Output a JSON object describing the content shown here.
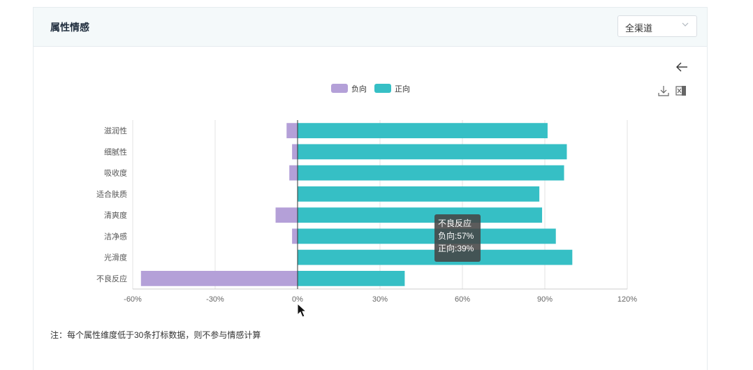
{
  "panel": {
    "title": "属性情感",
    "channel_select": {
      "value": "全渠道"
    },
    "note": "注：每个属性维度低于30条打标数据，则不参与情感计算"
  },
  "toolbar_icons": [
    "back-arrow-icon",
    "download-icon",
    "excel-export-icon"
  ],
  "tooltip": {
    "title": "不良反应",
    "line1": "负向:57%",
    "line2": "正向:39%"
  },
  "chart_data": {
    "type": "bar",
    "orientation": "horizontal",
    "stacked": true,
    "categories": [
      "滋润性",
      "细腻性",
      "吸收度",
      "适合肤质",
      "清爽度",
      "洁净感",
      "光滑度",
      "不良反应"
    ],
    "series": [
      {
        "name": "负向",
        "color": "#b4a0d8",
        "values": [
          -4,
          -2,
          -3,
          0,
          -8,
          -2,
          0,
          -57
        ]
      },
      {
        "name": "正向",
        "color": "#36bfc5",
        "values": [
          91,
          98,
          97,
          88,
          89,
          94,
          100,
          39
        ]
      }
    ],
    "xlim": [
      -60,
      120
    ],
    "xticks": [
      "-60%",
      "-30%",
      "0%",
      "30%",
      "60%",
      "90%",
      "120%"
    ],
    "xtick_values": [
      -60,
      -30,
      0,
      30,
      60,
      90,
      120
    ],
    "grid": true,
    "legend_position": "top-center"
  }
}
